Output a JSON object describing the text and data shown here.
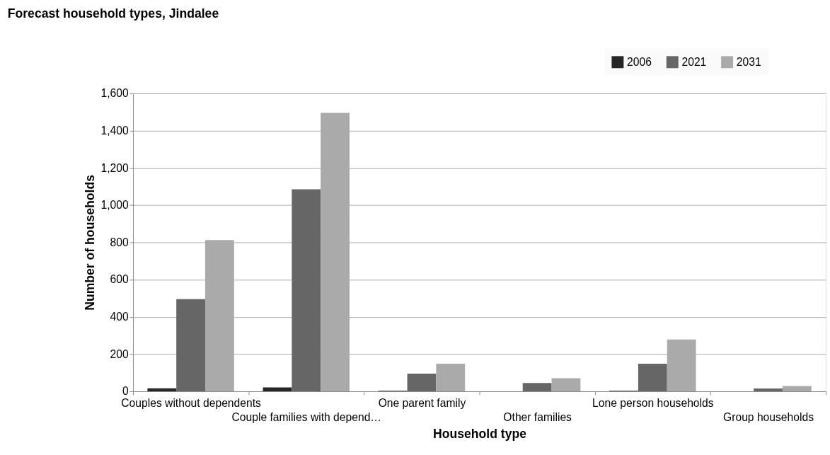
{
  "chart_data": {
    "type": "bar",
    "title": "Forecast household types, Jindalee",
    "xlabel": "Household type",
    "ylabel": "Number of households",
    "categories": [
      "Couples without dependents",
      "Couple families with depend…",
      "One parent family",
      "Other families",
      "Lone person households",
      "Group households"
    ],
    "series": [
      {
        "name": "2006",
        "color": "#262626",
        "values": [
          16,
          21,
          3,
          0,
          3,
          0
        ]
      },
      {
        "name": "2021",
        "color": "#666666",
        "values": [
          495,
          1085,
          95,
          45,
          148,
          15
        ]
      },
      {
        "name": "2031",
        "color": "#aaaaaa",
        "values": [
          812,
          1495,
          148,
          70,
          278,
          28
        ]
      }
    ],
    "ylim": [
      0,
      1600
    ],
    "yticks": [
      0,
      200,
      400,
      600,
      800,
      {
        "value": 1000,
        "label": "1,000"
      },
      {
        "value": 1200,
        "label": "1,200"
      },
      {
        "value": 1400,
        "label": "1,400"
      },
      {
        "value": 1600,
        "label": "1,600"
      }
    ],
    "grid": "y",
    "legend": "top right"
  }
}
